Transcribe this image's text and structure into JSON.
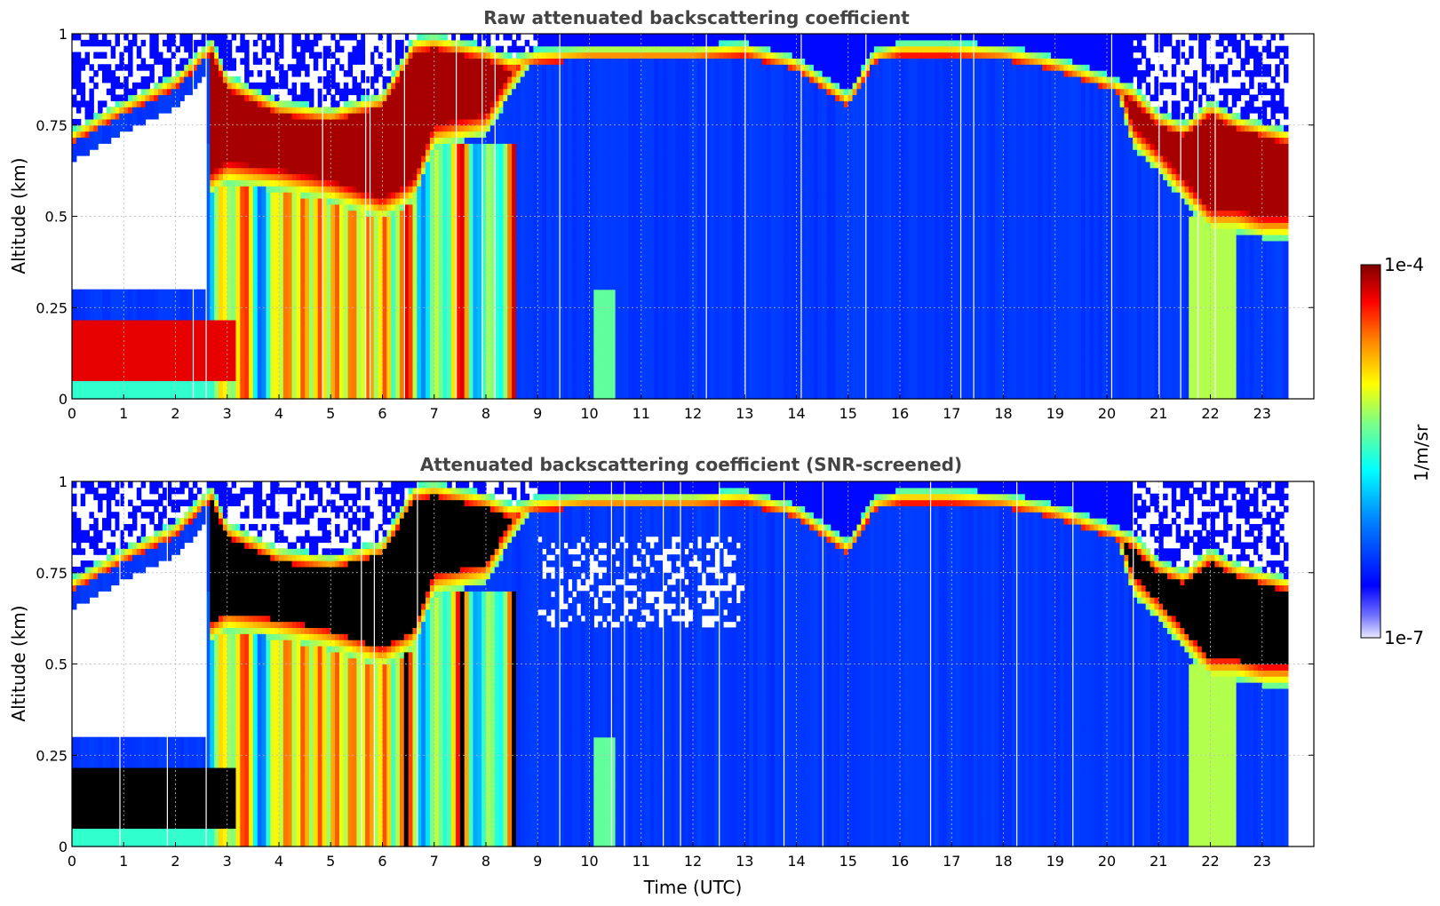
{
  "chart_data": [
    {
      "type": "heatmap",
      "title": "Raw attenuated backscattering coefficient",
      "xlabel": "",
      "ylabel": "Altitude (km)",
      "xlim": [
        0,
        24
      ],
      "ylim": [
        0,
        1
      ],
      "x_ticks": [
        "0",
        "1",
        "2",
        "3",
        "4",
        "5",
        "6",
        "7",
        "8",
        "9",
        "10",
        "11",
        "12",
        "13",
        "14",
        "15",
        "16",
        "17",
        "18",
        "19",
        "20",
        "21",
        "22",
        "23"
      ],
      "y_ticks": [
        "0",
        "0.25",
        "0.5",
        "0.75",
        "1"
      ],
      "grid": true,
      "data_extent_hours": [
        0,
        23.5
      ],
      "cloud_layer_top_km": [
        [
          0,
          0.7
        ],
        [
          1,
          0.78
        ],
        [
          2,
          0.85
        ],
        [
          2.7,
          0.95
        ],
        [
          3,
          0.85
        ],
        [
          4,
          0.78
        ],
        [
          5,
          0.76
        ],
        [
          6,
          0.8
        ],
        [
          6.6,
          0.95
        ],
        [
          7,
          0.96
        ],
        [
          8,
          0.93
        ],
        [
          8.5,
          0.9
        ],
        [
          9,
          0.92
        ],
        [
          10,
          0.93
        ],
        [
          11,
          0.93
        ],
        [
          12,
          0.93
        ],
        [
          13,
          0.94
        ],
        [
          14,
          0.9
        ],
        [
          15,
          0.8
        ],
        [
          15.5,
          0.92
        ],
        [
          16,
          0.94
        ],
        [
          17,
          0.94
        ],
        [
          18,
          0.93
        ],
        [
          19,
          0.9
        ],
        [
          20,
          0.85
        ],
        [
          20.5,
          0.82
        ],
        [
          21,
          0.75
        ],
        [
          21.5,
          0.72
        ],
        [
          22,
          0.78
        ],
        [
          22.5,
          0.74
        ],
        [
          23,
          0.72
        ],
        [
          23.5,
          0.7
        ]
      ],
      "cloud_layer_base_km": [
        [
          2.7,
          0.62
        ],
        [
          3,
          0.65
        ],
        [
          4,
          0.63
        ],
        [
          5,
          0.6
        ],
        [
          6,
          0.55
        ],
        [
          6.6,
          0.6
        ],
        [
          7,
          0.75
        ],
        [
          8,
          0.78
        ],
        [
          8.5,
          0.9
        ],
        [
          9,
          1
        ],
        [
          20,
          1
        ],
        [
          20.5,
          0.75
        ],
        [
          21,
          0.68
        ],
        [
          21.5,
          0.6
        ],
        [
          22,
          0.52
        ],
        [
          22.5,
          0.52
        ],
        [
          23,
          0.5
        ],
        [
          23.5,
          0.5
        ]
      ],
      "low_layer_km": [
        0.05,
        0.22
      ],
      "low_layer_hours": [
        0,
        3.2
      ]
    },
    {
      "type": "heatmap",
      "title": "Attenuated backscattering coefficient (SNR-screened)",
      "xlabel": "Time (UTC)",
      "ylabel": "Altitude (km)",
      "xlim": [
        0,
        24
      ],
      "ylim": [
        0,
        1
      ],
      "x_ticks": [
        "0",
        "1",
        "2",
        "3",
        "4",
        "5",
        "6",
        "7",
        "8",
        "9",
        "10",
        "11",
        "12",
        "13",
        "14",
        "15",
        "16",
        "17",
        "18",
        "19",
        "20",
        "21",
        "22",
        "23"
      ],
      "y_ticks": [
        "0",
        "0.25",
        "0.5",
        "0.75",
        "1"
      ],
      "grid": true,
      "data_extent_hours": [
        0,
        23.5
      ],
      "saturated_color": "#000000"
    }
  ],
  "colorbar": {
    "label": "1/m/sr",
    "max_label": "1e-4",
    "min_label": "1e-7",
    "scale": "log",
    "colormap": [
      "#e8e8ff",
      "#0000ff",
      "#00aaff",
      "#00ffff",
      "#80ff80",
      "#ffff00",
      "#ff8000",
      "#ff0000",
      "#800000"
    ]
  }
}
